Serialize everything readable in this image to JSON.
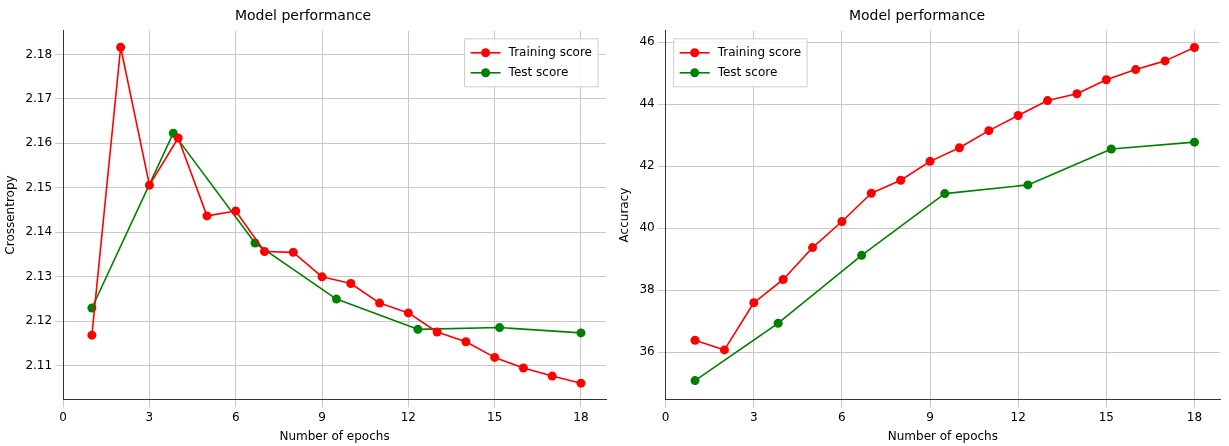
{
  "chart_data": [
    {
      "type": "line",
      "title": "Model performance",
      "xlabel": "Number of epochs",
      "ylabel": "Crossentropy",
      "xlim": [
        0,
        18.87
      ],
      "xticks": [
        0,
        3,
        6,
        9,
        12,
        15,
        18
      ],
      "ylim": [
        2.1025,
        2.1853
      ],
      "yticks": [
        2.11,
        2.12,
        2.13,
        2.14,
        2.15,
        2.16,
        2.17,
        2.18
      ],
      "grid": true,
      "legend": "top right",
      "marker": "circle",
      "series": [
        {
          "name": "Training score",
          "color": "#ff0000",
          "x": [
            1,
            2,
            3,
            4,
            5,
            6,
            7,
            8,
            9,
            10,
            11,
            12,
            13,
            14,
            15,
            16,
            17,
            18
          ],
          "values": [
            2.1169,
            2.1816,
            2.1506,
            2.1612,
            2.1437,
            2.1448,
            2.1357,
            2.1355,
            2.13,
            2.1285,
            2.1241,
            2.1219,
            2.1176,
            2.1154,
            2.1119,
            2.1095,
            2.1077,
            2.1061
          ]
        },
        {
          "name": "Test score",
          "color": "#008000",
          "x": [
            1,
            3.83,
            6.67,
            9.5,
            12.33,
            15.17,
            18
          ],
          "values": [
            2.123,
            2.1623,
            2.1376,
            2.125,
            2.1182,
            2.1186,
            2.1174
          ]
        }
      ]
    },
    {
      "type": "line",
      "title": "Model performance",
      "xlabel": "Number of epochs",
      "ylabel": "Accuracy",
      "xlim": [
        0,
        18.87
      ],
      "xticks": [
        0,
        3,
        6,
        9,
        12,
        15,
        18
      ],
      "ylim": [
        34.49,
        46.37
      ],
      "yticks": [
        36,
        38,
        40,
        42,
        44,
        46
      ],
      "grid": true,
      "legend": "top left",
      "marker": "circle",
      "series": [
        {
          "name": "Training score",
          "color": "#ff0000",
          "x": [
            1,
            2,
            3,
            4,
            5,
            6,
            7,
            8,
            9,
            10,
            11,
            12,
            13,
            14,
            15,
            16,
            17,
            18
          ],
          "values": [
            36.39,
            36.08,
            37.6,
            38.35,
            39.38,
            40.22,
            41.13,
            41.55,
            42.16,
            42.6,
            43.15,
            43.64,
            44.12,
            44.34,
            44.79,
            45.12,
            45.4,
            45.83
          ]
        },
        {
          "name": "Test score",
          "color": "#008000",
          "x": [
            1,
            3.83,
            6.67,
            9.5,
            12.33,
            15.17,
            18
          ],
          "values": [
            35.09,
            36.94,
            39.13,
            41.12,
            41.4,
            42.56,
            42.78
          ]
        }
      ]
    }
  ]
}
